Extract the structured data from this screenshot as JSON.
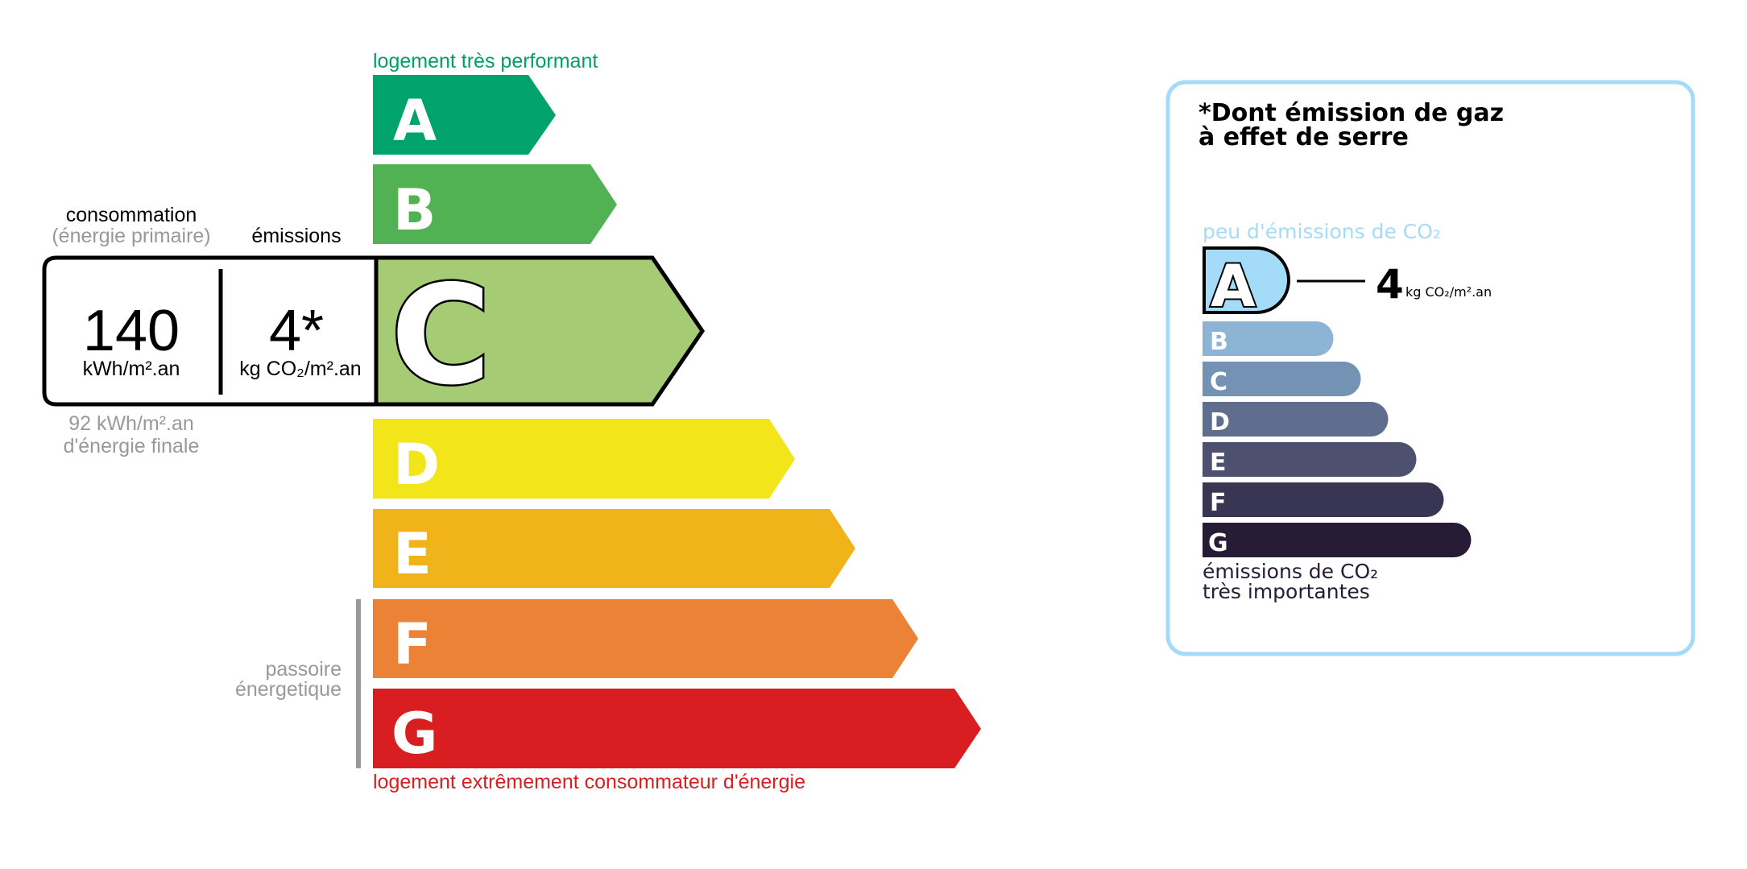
{
  "energy": {
    "top_label": "logement très performant",
    "bottom_label": "logement extrêmement consommateur d'énergie",
    "top_color": "#00a06b",
    "bottom_color": "#d81e20",
    "classes": [
      {
        "letter": "A",
        "color": "#00a36c"
      },
      {
        "letter": "B",
        "color": "#52b153"
      },
      {
        "letter": "C",
        "color": "#a5cc74"
      },
      {
        "letter": "D",
        "color": "#f2e61b"
      },
      {
        "letter": "E",
        "color": "#f0b41a"
      },
      {
        "letter": "F",
        "color": "#eb8235"
      },
      {
        "letter": "G",
        "color": "#d81e20"
      }
    ],
    "current_class": "C",
    "consumption_label": "consommation",
    "consumption_sublabel": "(énergie primaire)",
    "emissions_label": "émissions",
    "consumption_value": "140",
    "consumption_unit": "kWh/m².an",
    "emissions_value": "4*",
    "emissions_unit": "kg CO₂/m².an",
    "final_energy_value": "92 kWh/m².an",
    "final_energy_label": "d'énergie finale",
    "passoire_line1": "passoire",
    "passoire_line2": "énergetique"
  },
  "ges": {
    "title_line1": "*Dont émission de gaz",
    "title_line2": "à effet de serre",
    "top_label": "peu d'émissions de CO₂",
    "bottom_label_line1": "émissions de CO₂",
    "bottom_label_line2": "très importantes",
    "border_color": "#a4dbf8",
    "classes": [
      {
        "letter": "A",
        "color": "#a4dbf8"
      },
      {
        "letter": "B",
        "color": "#8db3d5"
      },
      {
        "letter": "C",
        "color": "#7493b4"
      },
      {
        "letter": "D",
        "color": "#5f6d8e"
      },
      {
        "letter": "E",
        "color": "#4d516f"
      },
      {
        "letter": "F",
        "color": "#393653"
      },
      {
        "letter": "G",
        "color": "#281b35"
      }
    ],
    "current_class": "A",
    "value": "4",
    "unit": "kg CO₂/m².an"
  }
}
